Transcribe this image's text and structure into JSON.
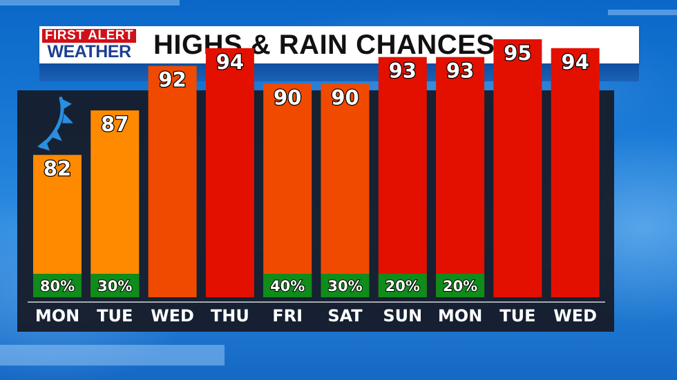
{
  "header": {
    "logo_top": "FIRST ALERT",
    "logo_bottom": "WEATHER",
    "title": "HIGHS & RAIN CHANCES"
  },
  "colors": {
    "warm": "#ff8a00",
    "hot": "#f04a00",
    "very_hot": "#e31000",
    "rain_box": "#0f8c1a",
    "front_icon": "#2a8de0"
  },
  "chart_data": {
    "type": "bar",
    "categories": [
      "MON",
      "TUE",
      "WED",
      "THU",
      "FRI",
      "SAT",
      "SUN",
      "MON",
      "TUE",
      "WED"
    ],
    "series": [
      {
        "values": [
          82,
          87,
          92,
          94,
          90,
          90,
          93,
          93,
          95,
          94
        ]
      }
    ],
    "rain_chances": [
      "80%",
      "30%",
      "",
      "",
      "40%",
      "30%",
      "20%",
      "20%",
      "",
      ""
    ],
    "value_labels": [
      "82",
      "87",
      "92",
      "94",
      "90",
      "90",
      "93",
      "93",
      "95",
      "94"
    ],
    "bar_colors": [
      "#ff8a00",
      "#ff8a00",
      "#f04a00",
      "#e31000",
      "#f04a00",
      "#f04a00",
      "#e31000",
      "#e31000",
      "#e31000",
      "#e31000"
    ],
    "ylim": [
      66,
      97
    ],
    "icons": [
      {
        "category_index": 0,
        "icon": "cold-front-icon"
      }
    ],
    "grid": false,
    "legend": "none"
  }
}
